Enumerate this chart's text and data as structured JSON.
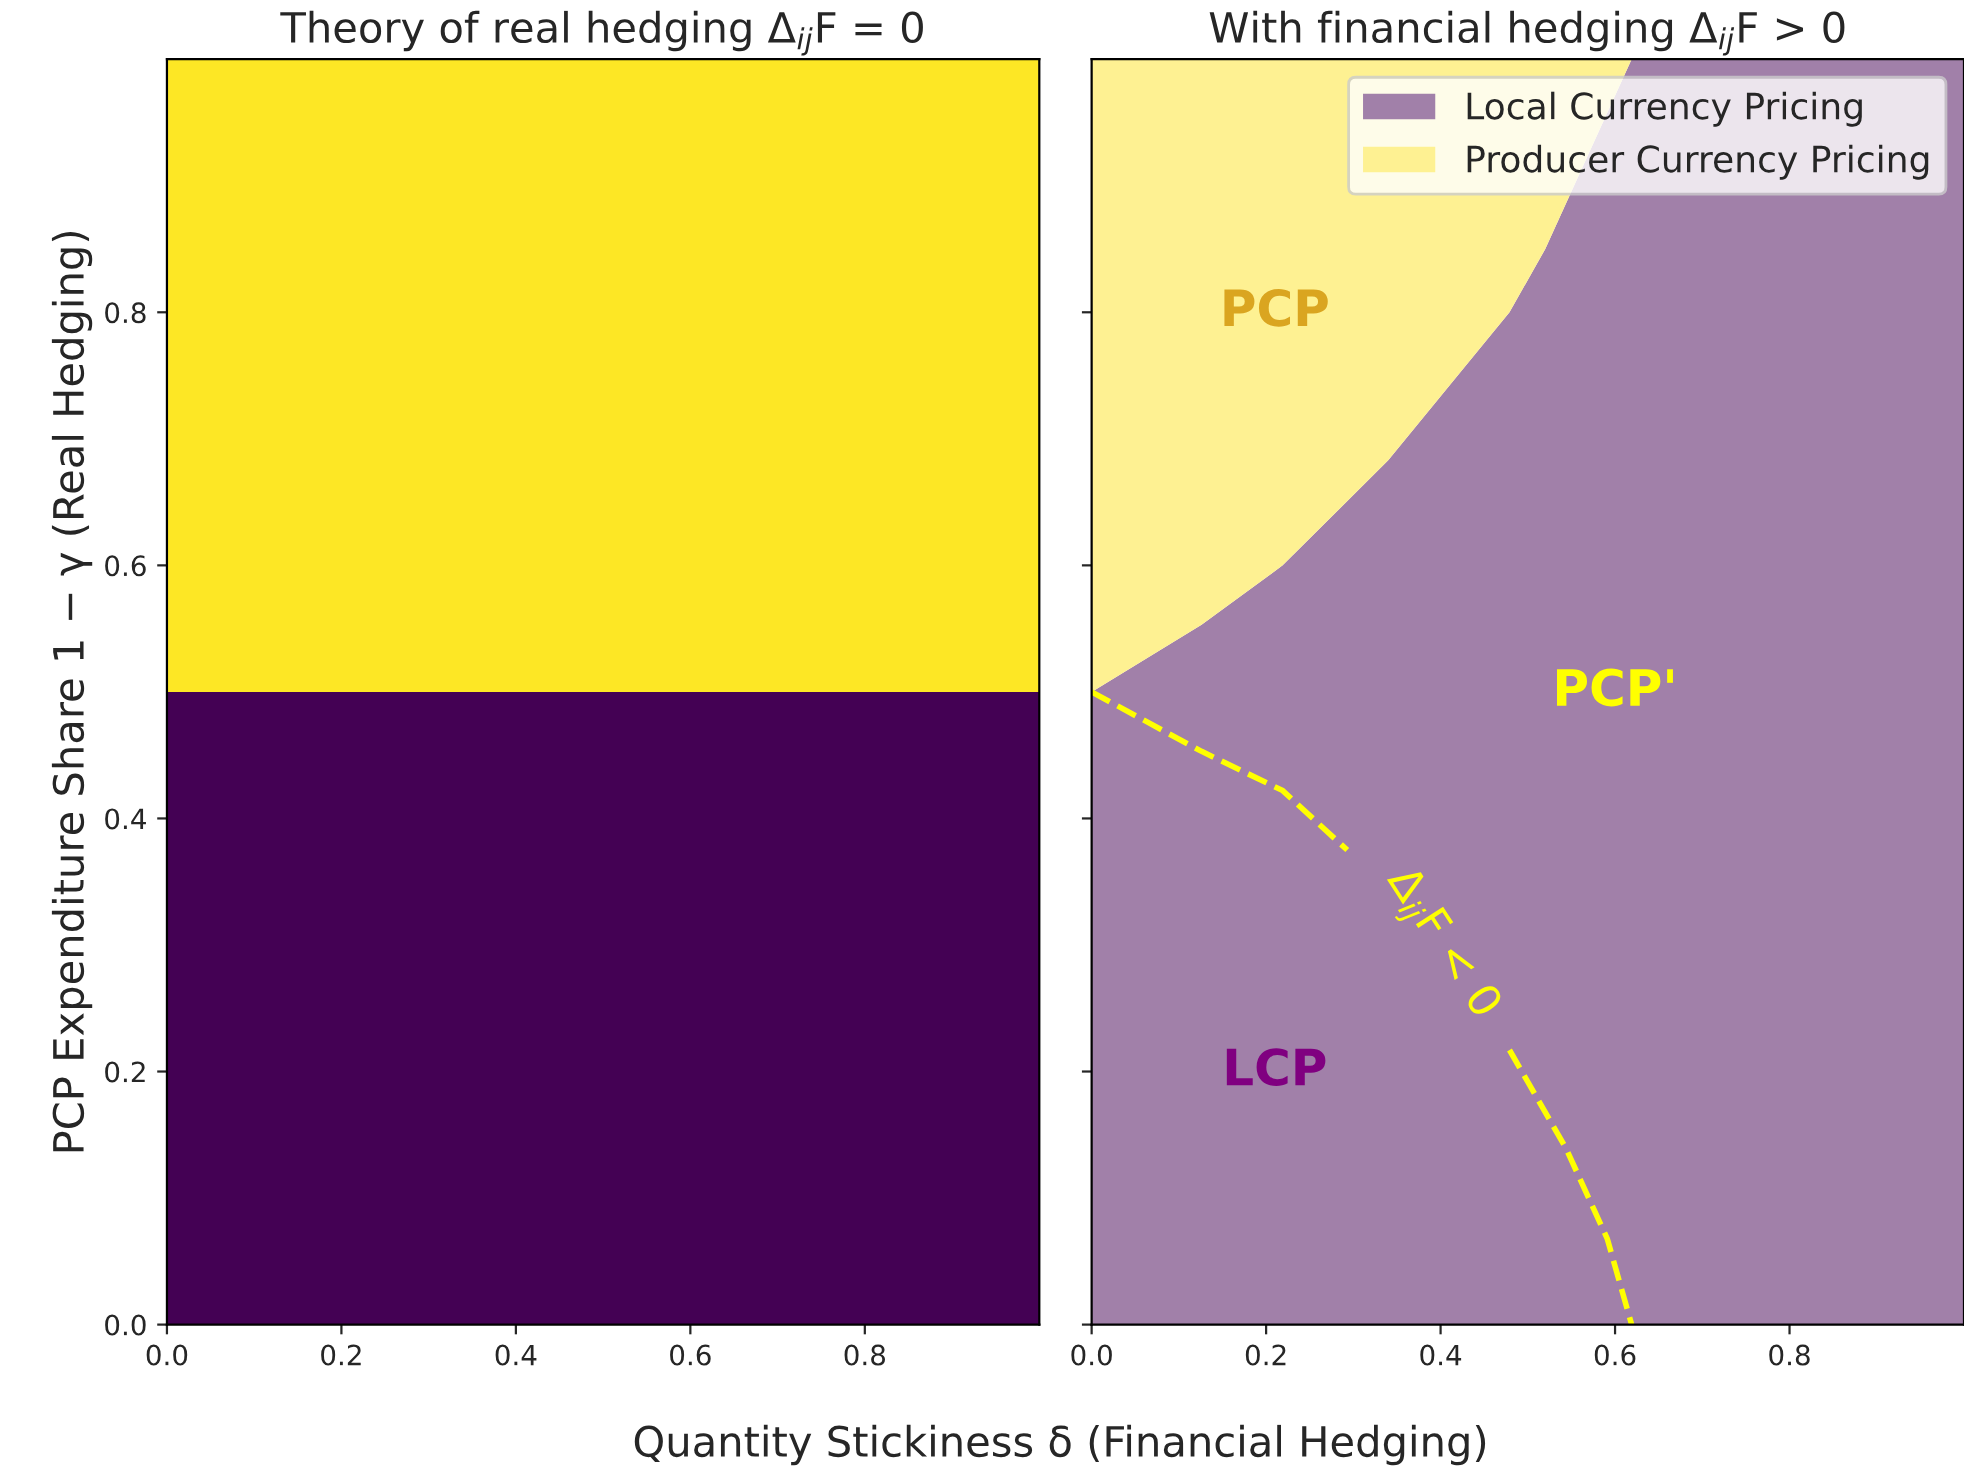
{
  "chart_data": [
    {
      "type": "area",
      "title": "Theory of real hedging Δ$_{ij}$F = 0",
      "xlabel": "Quantity Stickiness δ (Financial Hedging)",
      "ylabel": "PCP Expenditure Share 1 − γ (Real Hedging)",
      "stacked": true,
      "x": [
        0,
        1
      ],
      "series": [
        {
          "color": "#440154",
          "values": [
            0.5,
            0.5
          ]
        },
        {
          "color": "#fde725",
          "values": [
            0.5,
            0.5
          ]
        }
      ],
      "xlim": [
        0,
        1
      ],
      "ylim": [
        0,
        1
      ],
      "xticks": [
        {
          "value": 0,
          "label": "0.0"
        },
        0.2,
        0.4,
        0.6,
        0.8
      ],
      "yticks": [
        {
          "value": 0,
          "label": "0.0"
        },
        0.2,
        0.4,
        0.6,
        0.8
      ],
      "grid": false,
      "legend": false
    },
    {
      "type": "area",
      "title": "With financial hedging Δ$_{ij}$F > 0",
      "stacked": true,
      "x": [
        0,
        0.126,
        0.219,
        0.34,
        0.479,
        0.52,
        0.619,
        1.0
      ],
      "series": [
        {
          "name": "Local Currency Pricing",
          "color": "#a180a9",
          "values": [
            0.5,
            0.553,
            0.6,
            0.683,
            0.8,
            0.85,
            1.0,
            1.0
          ]
        },
        {
          "name": "Producer Currency Pricing",
          "color": "#fef192",
          "values": [
            0.5,
            0.447,
            0.4,
            0.317,
            0.2,
            0.15,
            0.0,
            0.0
          ]
        },
        {
          "type": "line",
          "color": "#ffff00",
          "line_style": "dashed",
          "x": [
            0,
            0.126,
            0.219,
            0.293,
            0.4,
            0.479,
            0.544,
            0.591,
            0.619
          ],
          "values": [
            0.5,
            0.453,
            0.422,
            0.375,
            null,
            0.217,
            0.139,
            0.068,
            0.0
          ]
        }
      ],
      "annotations": [
        "PCP",
        "PCP'",
        "LCP",
        "Δ$_{ij}$F < 0"
      ],
      "xlim": [
        0,
        1
      ],
      "ylim": [
        0,
        1
      ],
      "xticks": [
        {
          "value": 0,
          "label": "0.0"
        },
        0.2,
        0.4,
        0.6,
        0.8
      ],
      "yticks": [
        0,
        0.2,
        0.4,
        0.6,
        0.8
      ],
      "tick_labels": "x",
      "grid": false,
      "legend": "top right"
    }
  ]
}
